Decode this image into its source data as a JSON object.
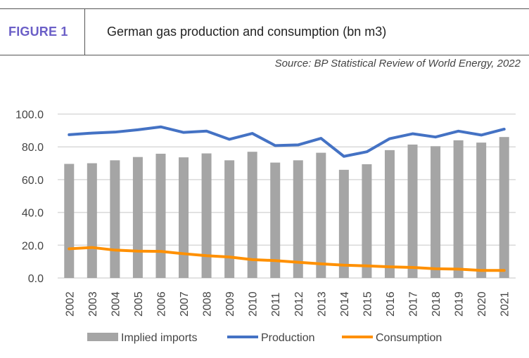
{
  "header": {
    "figure_label": "FIGURE 1",
    "title": "German gas production and consumption (bn m3)",
    "source": "Source: BP Statistical Review of World Energy, 2022"
  },
  "chart_data": {
    "type": "bar",
    "title": "German gas production and consumption (bn m3)",
    "categories": [
      "2002",
      "2003",
      "2004",
      "2005",
      "2006",
      "2007",
      "2008",
      "2009",
      "2010",
      "2011",
      "2012",
      "2013",
      "2014",
      "2015",
      "2016",
      "2017",
      "2018",
      "2019",
      "2020",
      "2021"
    ],
    "ylim": [
      0,
      100
    ],
    "yticks": [
      "0.0",
      "20.0",
      "40.0",
      "60.0",
      "80.0",
      "100.0"
    ],
    "grid": true,
    "legend": "bottom",
    "series": [
      {
        "name": "Implied imports",
        "type": "bar",
        "color": "#a5a5a5",
        "values": [
          69.6,
          70.0,
          71.8,
          73.8,
          75.8,
          73.6,
          76.0,
          71.8,
          77.0,
          70.4,
          71.8,
          76.4,
          66.0,
          69.4,
          78.0,
          81.4,
          80.4,
          84.0,
          82.6,
          86.0
        ]
      },
      {
        "name": "Production",
        "type": "line",
        "color": "#4472c4",
        "values": [
          87.4,
          88.4,
          89.0,
          90.4,
          92.2,
          88.8,
          89.6,
          84.6,
          88.2,
          80.8,
          81.2,
          85.2,
          74.2,
          77.0,
          85.0,
          88.0,
          86.0,
          89.6,
          87.2,
          90.8
        ]
      },
      {
        "name": "Consumption",
        "type": "line",
        "color": "#ff9000",
        "values": [
          17.8,
          18.6,
          17.0,
          16.4,
          16.2,
          14.8,
          13.6,
          12.8,
          11.2,
          10.6,
          9.6,
          8.6,
          7.8,
          7.4,
          6.8,
          6.4,
          5.6,
          5.4,
          4.6,
          4.6
        ]
      }
    ]
  }
}
